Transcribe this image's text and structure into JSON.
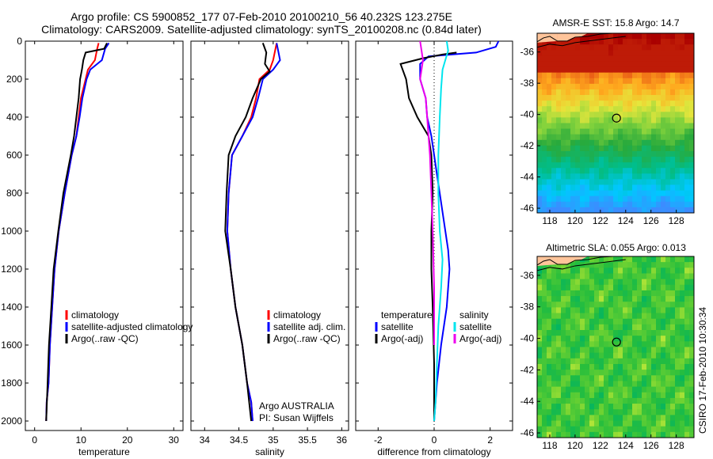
{
  "title_line1": "Argo profile: CS 5900852_177 07-Feb-2010 20100210_56 40.232S 123.275E",
  "title_line2": "Climatology: CARS2009. Satellite-adjusted climatology: synTS_20100208.nc (0.84d later)",
  "stamp": "CSIRO 17-Feb-2010 10:30:34",
  "colors": {
    "climatology": "#ff0000",
    "satellite": "#0000ff",
    "argo": "#000000",
    "sal_satellite": "#00e5ee",
    "sal_argo": "#ee00ee"
  },
  "chart_data": [
    {
      "type": "line",
      "xlabel": "temperature",
      "ylabel": "",
      "xlim": [
        -2,
        32
      ],
      "ylim": [
        2050,
        0
      ],
      "xticks": [
        "0",
        "10",
        "20",
        "30"
      ],
      "yticks": [
        "0",
        "200",
        "400",
        "600",
        "800",
        "1000",
        "1200",
        "1400",
        "1600",
        "1800",
        "2000"
      ],
      "legend": [
        "climatology",
        "satellite-adjusted climatology",
        "Argo(..raw -QC)"
      ],
      "series": [
        {
          "name": "climatology",
          "x": [
            13.8,
            13.5,
            13.0,
            11.5,
            11.0,
            10.0,
            9.5,
            9.0,
            8.0,
            6.5,
            5.2,
            4.3,
            3.8,
            3.3,
            3.0,
            2.6,
            2.5
          ],
          "y": [
            10,
            40,
            100,
            150,
            200,
            300,
            400,
            500,
            600,
            800,
            1000,
            1200,
            1400,
            1600,
            1800,
            1900,
            2000
          ]
        },
        {
          "name": "satellite-adjusted climatology",
          "x": [
            16.0,
            15.2,
            14.5,
            12.0,
            11.2,
            10.3,
            9.7,
            9.0,
            8.0,
            6.5,
            5.2,
            4.3,
            3.8,
            3.3,
            3.0,
            2.6,
            2.5
          ],
          "y": [
            10,
            40,
            100,
            150,
            200,
            300,
            400,
            500,
            600,
            800,
            1000,
            1200,
            1400,
            1600,
            1800,
            1900,
            2000
          ]
        },
        {
          "name": "Argo(..raw -QC)",
          "x": [
            15.6,
            15.0,
            11.0,
            10.5,
            10.2,
            9.8,
            9.5,
            9.0,
            8.5,
            7.8,
            6.2,
            5.1,
            4.1,
            3.6,
            3.1,
            2.8,
            2.5
          ],
          "y": [
            10,
            40,
            60,
            100,
            150,
            200,
            300,
            400,
            500,
            600,
            800,
            1000,
            1200,
            1400,
            1600,
            1800,
            2000
          ]
        }
      ]
    },
    {
      "type": "line",
      "xlabel": "salinity",
      "xlim": [
        33.8,
        36.1
      ],
      "ylim": [
        2050,
        0
      ],
      "xticks": [
        "34",
        "34.5",
        "35",
        "35.5",
        "36"
      ],
      "legend": [
        "climatology",
        "satellite adj. clim.",
        "Argo(..raw -QC)"
      ],
      "annotation": [
        "Argo AUSTRALIA",
        "PI: Susan Wijffels"
      ],
      "series": [
        {
          "name": "climatology",
          "x": [
            35.05,
            35.0,
            34.95,
            34.8,
            34.75,
            34.68,
            34.55,
            34.4,
            34.35,
            34.33,
            34.38,
            34.45,
            34.55,
            34.62,
            34.68,
            34.7
          ],
          "y": [
            10,
            100,
            150,
            200,
            300,
            400,
            500,
            600,
            800,
            1000,
            1200,
            1400,
            1600,
            1800,
            1900,
            2000
          ]
        },
        {
          "name": "satellite adj. clim.",
          "x": [
            35.05,
            35.1,
            35.0,
            34.85,
            34.78,
            34.7,
            34.55,
            34.4,
            34.35,
            34.33,
            34.38,
            34.45,
            34.55,
            34.62,
            34.68,
            34.7
          ],
          "y": [
            10,
            100,
            150,
            200,
            300,
            400,
            500,
            600,
            800,
            1000,
            1200,
            1400,
            1600,
            1800,
            1900,
            2000
          ]
        },
        {
          "name": "Argo(..raw -QC)",
          "x": [
            34.85,
            34.9,
            34.88,
            34.95,
            34.82,
            34.7,
            34.6,
            34.45,
            34.35,
            34.32,
            34.3,
            34.38,
            34.45,
            34.55,
            34.62,
            34.68
          ],
          "y": [
            10,
            60,
            120,
            160,
            200,
            300,
            400,
            500,
            600,
            800,
            1000,
            1200,
            1400,
            1600,
            1800,
            2000
          ]
        }
      ]
    },
    {
      "type": "line",
      "xlabel": "difference from climatology",
      "xlim": [
        -2.8,
        2.8
      ],
      "ylim": [
        2050,
        0
      ],
      "xticks": [
        "-2",
        "0",
        "2"
      ],
      "legend": [
        "temperature",
        "satellite",
        "Argo(-adj)",
        "salinity",
        "satellite",
        "Argo(-adj)"
      ],
      "series": [
        {
          "name": "satellite",
          "x": [
            2.3,
            2.2,
            1.5,
            -0.2,
            -0.5,
            -0.5,
            -0.3,
            -0.25,
            -0.1,
            0.1,
            0.3,
            0.5,
            0.55,
            0.45,
            0.25,
            0.1,
            0.0
          ],
          "y": [
            0,
            30,
            60,
            80,
            120,
            200,
            300,
            400,
            500,
            700,
            900,
            1100,
            1200,
            1400,
            1600,
            1800,
            2000
          ]
        },
        {
          "name": "Argo(-adj)",
          "x": [
            0.8,
            0.3,
            -0.4,
            -1.2,
            -1.0,
            -0.9,
            -0.6,
            -0.2,
            -0.1,
            -0.05,
            -0.1,
            -0.1,
            -0.05,
            0.0,
            0.0
          ],
          "y": [
            60,
            70,
            90,
            120,
            200,
            300,
            400,
            500,
            600,
            800,
            1000,
            1200,
            1400,
            1700,
            2000
          ]
        },
        {
          "name": "satellite",
          "x": [
            0.45,
            0.5,
            0.4,
            0.3,
            0.25,
            0.2,
            0.15,
            0.15,
            0.2,
            0.3,
            0.25,
            0.15,
            0.1,
            0.05,
            0.0
          ],
          "y": [
            0,
            50,
            100,
            150,
            250,
            400,
            600,
            800,
            1000,
            1150,
            1300,
            1500,
            1700,
            1900,
            2000
          ]
        },
        {
          "name": "Argo(-adj)",
          "x": [
            -0.5,
            -0.4,
            -0.5,
            -0.3,
            -0.25,
            -0.2,
            -0.15,
            -0.1,
            -0.05,
            0.0,
            0.0
          ],
          "y": [
            0,
            100,
            200,
            300,
            400,
            500,
            600,
            800,
            1000,
            1300,
            1600
          ]
        }
      ]
    },
    {
      "type": "heatmap",
      "title": "AMSR-E SST: 15.8 Argo: 14.7",
      "xticks": [
        "118",
        "120",
        "122",
        "124",
        "126",
        "128"
      ],
      "yticks": [
        "-36",
        "-38",
        "-40",
        "-42",
        "-44",
        "-46"
      ],
      "marker": {
        "lon": 123.275,
        "lat": -40.232
      }
    },
    {
      "type": "heatmap",
      "title": "Altimetric SLA: 0.055 Argo: 0.013",
      "xticks": [
        "118",
        "120",
        "122",
        "124",
        "126",
        "128"
      ],
      "yticks": [
        "-36",
        "-38",
        "-40",
        "-42",
        "-44",
        "-46"
      ],
      "marker": {
        "lon": 123.275,
        "lat": -40.232
      }
    }
  ]
}
